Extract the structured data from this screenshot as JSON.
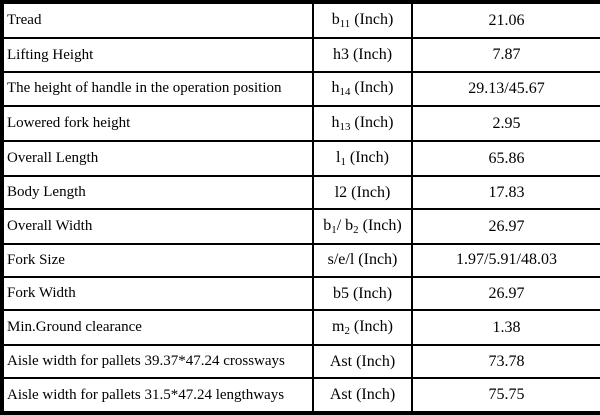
{
  "table": {
    "unit_label": "Inch",
    "border_color": "#000000",
    "background_color": "#ffffff",
    "text_color": "#000000",
    "columns": [
      "parameter",
      "symbol",
      "value"
    ],
    "rows": [
      {
        "parameter": "Tread",
        "symbol": [
          {
            "t": "b"
          },
          {
            "t": "11",
            "sub": true
          },
          {
            "t": " (Inch)"
          }
        ],
        "value": "21.06"
      },
      {
        "parameter": "Lifting Height",
        "symbol": [
          {
            "t": "h3 (Inch)"
          }
        ],
        "value": "7.87"
      },
      {
        "parameter": "The height of handle in the operation position",
        "symbol": [
          {
            "t": "h"
          },
          {
            "t": "14",
            "sub": true
          },
          {
            "t": " (Inch)"
          }
        ],
        "value": "29.13/45.67"
      },
      {
        "parameter": "Lowered fork height",
        "symbol": [
          {
            "t": "h"
          },
          {
            "t": "13",
            "sub": true
          },
          {
            "t": " (Inch)"
          }
        ],
        "value": "2.95"
      },
      {
        "parameter": "Overall Length",
        "symbol": [
          {
            "t": "l"
          },
          {
            "t": "1",
            "sub": true
          },
          {
            "t": " (Inch)"
          }
        ],
        "value": "65.86"
      },
      {
        "parameter": "Body Length",
        "symbol": [
          {
            "t": "l2 (Inch)"
          }
        ],
        "value": "17.83"
      },
      {
        "parameter": "Overall Width",
        "symbol": [
          {
            "t": "b"
          },
          {
            "t": "1",
            "sub": true
          },
          {
            "t": "/ b"
          },
          {
            "t": "2",
            "sub": true
          },
          {
            "t": " (Inch)"
          }
        ],
        "value": "26.97"
      },
      {
        "parameter": "Fork Size",
        "symbol": [
          {
            "t": "s/e/l (Inch)"
          }
        ],
        "value": "1.97/5.91/48.03"
      },
      {
        "parameter": "Fork Width",
        "symbol": [
          {
            "t": "b5 (Inch)"
          }
        ],
        "value": "26.97"
      },
      {
        "parameter": "Min.Ground clearance",
        "symbol": [
          {
            "t": "m"
          },
          {
            "t": "2",
            "sub": true
          },
          {
            "t": " (Inch)"
          }
        ],
        "value": "1.38"
      },
      {
        "parameter": "Aisle width for pallets 39.37*47.24 crossways",
        "symbol": [
          {
            "t": "Ast (Inch)"
          }
        ],
        "value": "73.78"
      },
      {
        "parameter": "Aisle width for pallets 31.5*47.24 lengthways",
        "symbol": [
          {
            "t": "Ast (Inch)"
          }
        ],
        "value": "75.75"
      }
    ]
  }
}
